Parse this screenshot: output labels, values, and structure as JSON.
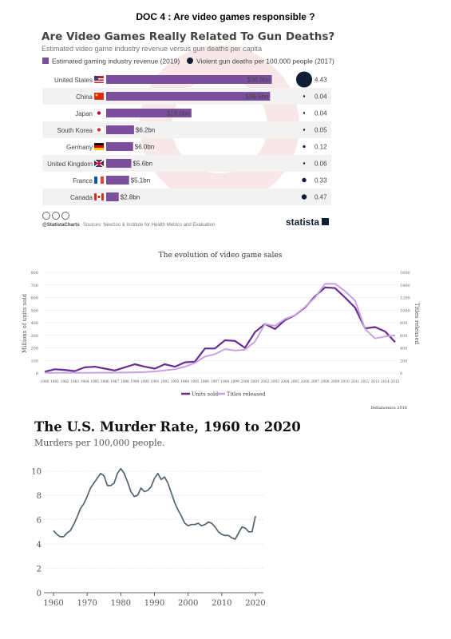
{
  "doc_title": "DOC 4  : Are video games responsible ?",
  "chart_data": [
    {
      "type": "bar",
      "title": "Are Video Games Really Related To Gun Deaths?",
      "subtitle": "Estimated video game industry revenue versus gun deaths per capita",
      "legend": [
        "Estimated gaming industry revenue (2019)",
        "Violent gun deaths per 100,000 people (2017)"
      ],
      "categories": [
        "United States",
        "China",
        "Japan",
        "South Korea",
        "Germany",
        "United Kingdom",
        "France",
        "Canada"
      ],
      "series": [
        {
          "name": "Estimated gaming industry revenue (2019)",
          "values": [
            36.9,
            36.5,
            19.0,
            6.2,
            6.0,
            5.6,
            5.1,
            2.8
          ],
          "value_labels": [
            "$36.9bn",
            "$36.5bn",
            "$19.0bn",
            "$6.2bn",
            "$6.0bn",
            "$5.6bn",
            "$5.1bn",
            "$2.8bn"
          ]
        },
        {
          "name": "Violent gun deaths per 100,000 people (2017)",
          "values": [
            4.43,
            0.04,
            0.04,
            0.05,
            0.12,
            0.06,
            0.33,
            0.47
          ],
          "value_labels": [
            "4.43",
            "0.04",
            "0.04",
            "0.05",
            "0.12",
            "0.06",
            "0.33",
            "0.47"
          ]
        }
      ],
      "source": "Sources: Newzoo & Institute for Health Metrics and Evaluation",
      "credit": "@StatistaCharts",
      "brand": "statista",
      "colors": {
        "bar": "#7b4f9e",
        "bubble": "#0f1d35",
        "alt_row": "#f2f2f2",
        "title": "#444444"
      }
    },
    {
      "type": "line",
      "title": "The evolution of video game sales",
      "x": [
        1980,
        1981,
        1982,
        1983,
        1984,
        1985,
        1986,
        1987,
        1988,
        1989,
        1990,
        1991,
        1992,
        1993,
        1994,
        1995,
        1996,
        1997,
        1998,
        1999,
        2000,
        2001,
        2002,
        2003,
        2004,
        2005,
        2006,
        2007,
        2008,
        2009,
        2010,
        2011,
        2012,
        2013,
        2014,
        2015
      ],
      "x_tick_labels": [
        "1980",
        "1981",
        "1982",
        "1983",
        "1984",
        "1985",
        "1986",
        "1987",
        "1988",
        "1989",
        "1990",
        "1991",
        "1992",
        "1993",
        "1994",
        "1995",
        "1996",
        "1997",
        "1998",
        "1999",
        "2000",
        "2001",
        "2002",
        "2003",
        "2004",
        "2005",
        "2006",
        "2007",
        "2008",
        "2009",
        "2010",
        "2011",
        "2012",
        "2013",
        "2014",
        "2015"
      ],
      "series": [
        {
          "name": "Units sold",
          "axis": "left",
          "color": "#6a2c91",
          "values": [
            10,
            30,
            25,
            15,
            45,
            50,
            35,
            20,
            45,
            70,
            50,
            35,
            70,
            50,
            85,
            90,
            195,
            195,
            260,
            255,
            200,
            325,
            390,
            350,
            420,
            460,
            520,
            610,
            680,
            675,
            600,
            520,
            355,
            365,
            330,
            245
          ]
        },
        {
          "name": "Titles released",
          "axis": "right",
          "color": "#c9a3e0",
          "values": [
            2,
            4,
            6,
            5,
            4,
            5,
            5,
            6,
            8,
            12,
            15,
            25,
            40,
            60,
            100,
            160,
            260,
            300,
            380,
            360,
            370,
            500,
            780,
            750,
            860,
            920,
            1050,
            1200,
            1420,
            1420,
            1300,
            1150,
            700,
            550,
            580,
            600
          ]
        }
      ],
      "legend": [
        "Units sold",
        "Titles released"
      ],
      "ylabel_left": "Millions of units sold",
      "ylabel_right": "Titles released",
      "y_left_ticks": [
        0,
        100,
        200,
        300,
        400,
        500,
        600,
        700,
        800
      ],
      "y_right_ticks": [
        0,
        200,
        400,
        600,
        800,
        1000,
        1200,
        1400,
        1600
      ],
      "ylim_left": [
        0,
        800
      ],
      "ylim_right": [
        0,
        1600
      ],
      "grid": true,
      "credit": "Deltanomics 2016"
    },
    {
      "type": "line",
      "title": "The U.S. Murder Rate, 1960 to 2020",
      "subtitle": "Murders per 100,000 people.",
      "x": [
        1960,
        1961,
        1962,
        1963,
        1964,
        1965,
        1966,
        1967,
        1968,
        1969,
        1970,
        1971,
        1972,
        1973,
        1974,
        1975,
        1976,
        1977,
        1978,
        1979,
        1980,
        1981,
        1982,
        1983,
        1984,
        1985,
        1986,
        1987,
        1988,
        1989,
        1990,
        1991,
        1992,
        1993,
        1994,
        1995,
        1996,
        1997,
        1998,
        1999,
        2000,
        2001,
        2002,
        2003,
        2004,
        2005,
        2006,
        2007,
        2008,
        2009,
        2010,
        2011,
        2012,
        2013,
        2014,
        2015,
        2016,
        2017,
        2018,
        2019,
        2020
      ],
      "series": [
        {
          "name": "",
          "color": "#4f6472",
          "values": [
            5.1,
            4.8,
            4.6,
            4.6,
            4.9,
            5.1,
            5.6,
            6.2,
            6.9,
            7.3,
            7.9,
            8.6,
            9.0,
            9.4,
            9.8,
            9.6,
            8.8,
            8.8,
            9.0,
            9.8,
            10.2,
            9.8,
            9.1,
            8.3,
            7.9,
            8.0,
            8.6,
            8.3,
            8.4,
            8.7,
            9.4,
            9.8,
            9.3,
            9.5,
            9.0,
            8.2,
            7.4,
            6.8,
            6.3,
            5.7,
            5.5,
            5.6,
            5.6,
            5.7,
            5.5,
            5.6,
            5.8,
            5.7,
            5.4,
            5.0,
            4.8,
            4.7,
            4.7,
            4.5,
            4.4,
            4.9,
            5.4,
            5.3,
            5.0,
            5.0,
            6.3
          ]
        }
      ],
      "yticks": [
        0,
        2,
        4,
        6,
        8,
        10
      ],
      "xticks": [
        1960,
        1970,
        1980,
        1990,
        2000,
        2010,
        2020
      ],
      "ylim": [
        0,
        10.5
      ],
      "xlim": [
        1960,
        2020
      ]
    }
  ]
}
